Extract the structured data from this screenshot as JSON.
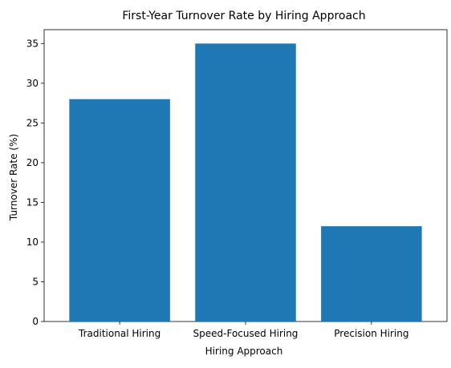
{
  "chart_data": {
    "type": "bar",
    "title": "First-Year Turnover Rate by Hiring Approach",
    "xlabel": "Hiring Approach",
    "ylabel": "Turnover Rate (%)",
    "categories": [
      "Traditional Hiring",
      "Speed-Focused Hiring",
      "Precision Hiring"
    ],
    "values": [
      28,
      35,
      12
    ],
    "ylim": [
      0,
      36.75
    ],
    "yticks": [
      0,
      5,
      10,
      15,
      20,
      25,
      30,
      35
    ],
    "bar_color": "#1f77b4",
    "grid": false,
    "legend": "none"
  }
}
